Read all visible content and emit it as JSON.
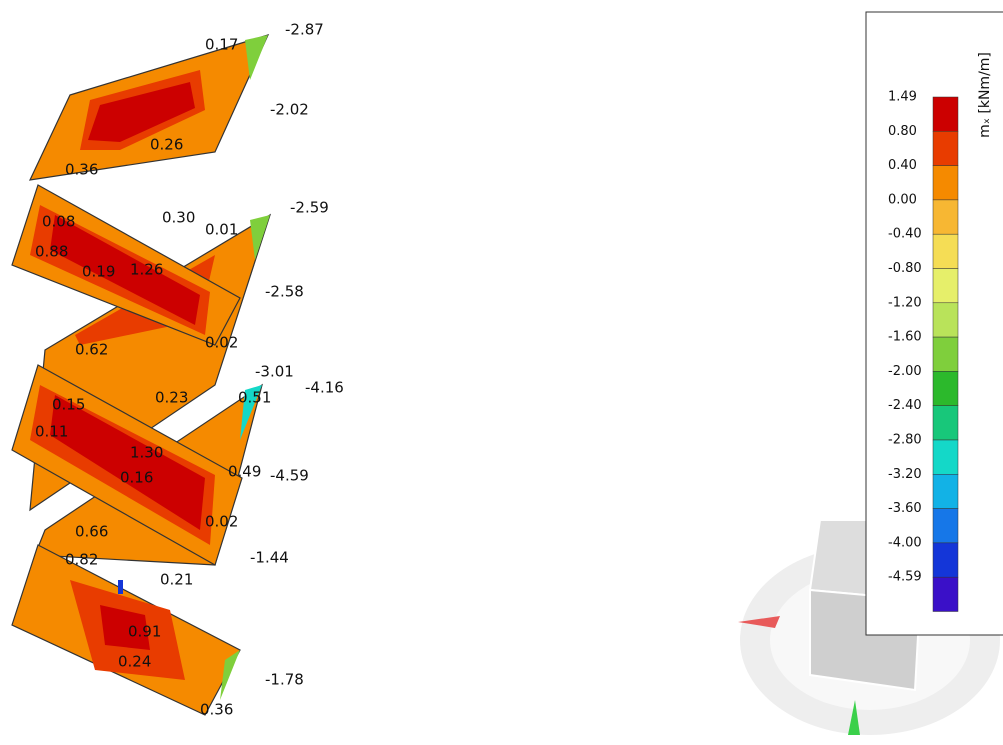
{
  "legend": {
    "title": "mₓ [kNm/m]",
    "levels": [
      "1.49",
      "0.80",
      "0.40",
      "0.00",
      "-0.40",
      "-0.80",
      "-1.20",
      "-1.60",
      "-2.00",
      "-2.40",
      "-2.80",
      "-3.20",
      "-3.60",
      "-4.00",
      "-4.59"
    ],
    "colors": [
      "#cc0000",
      "#e83c00",
      "#f58a00",
      "#f7b733",
      "#f5dd55",
      "#e6ef6a",
      "#b9e35a",
      "#7fcf3c",
      "#2cb92c",
      "#18c77a",
      "#14d8c8",
      "#12b2e6",
      "#1677e8",
      "#1436d8",
      "#3a10c8"
    ]
  },
  "labels": [
    "-2.87",
    "0.17",
    "-2.02",
    "0.26",
    "0.36",
    "-2.59",
    "0.08",
    "0.30",
    "0.01",
    "0.88",
    "0.19",
    "1.26",
    "-2.58",
    "0.02",
    "0.62",
    "-3.01",
    "-4.16",
    "0.15",
    "0.23",
    "0.51",
    "0.11",
    "1.30",
    "0.16",
    "0.49",
    "-4.59",
    "0.02",
    "0.66",
    "-1.44",
    "0.82",
    "0.21",
    "0.91",
    "0.24",
    "-1.78",
    "0.36"
  ]
}
